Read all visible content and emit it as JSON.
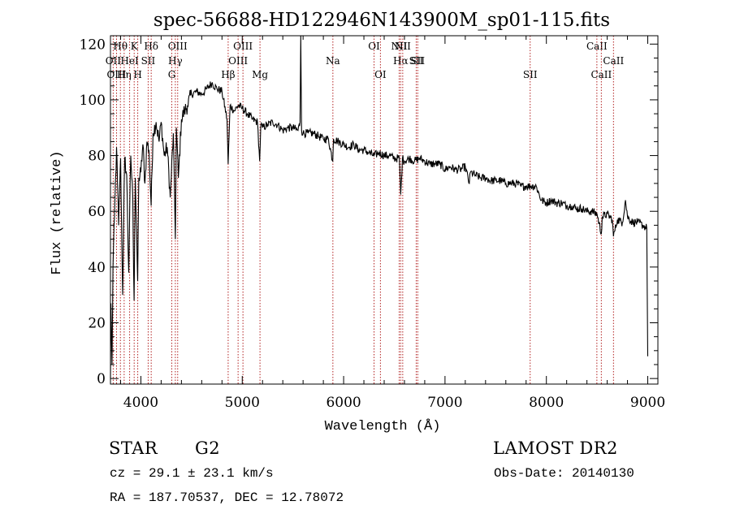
{
  "chart_data": {
    "type": "line",
    "title": "spec-56688-HD122946N143900M_sp01-115.fits",
    "xlabel": "Wavelength (Å)",
    "ylabel": "Flux (relative)",
    "xlim": [
      3700,
      9100
    ],
    "ylim": [
      -2,
      123
    ],
    "xticks": [
      4000,
      5000,
      6000,
      7000,
      8000,
      9000
    ],
    "yticks": [
      0,
      20,
      40,
      60,
      80,
      100,
      120
    ],
    "grid": false,
    "series": [
      {
        "name": "flux",
        "x": [
          3700,
          3705,
          3715,
          3725,
          3740,
          3760,
          3780,
          3800,
          3820,
          3840,
          3860,
          3880,
          3900,
          3920,
          3933,
          3945,
          3968,
          3980,
          4000,
          4020,
          4040,
          4060,
          4080,
          4101,
          4120,
          4150,
          4180,
          4200,
          4230,
          4260,
          4290,
          4320,
          4340,
          4350,
          4370,
          4400,
          4430,
          4460,
          4500,
          4550,
          4600,
          4650,
          4700,
          4750,
          4800,
          4850,
          4861,
          4880,
          4920,
          4960,
          5000,
          5050,
          5100,
          5150,
          5172,
          5183,
          5200,
          5250,
          5300,
          5350,
          5400,
          5450,
          5500,
          5550,
          5570,
          5577,
          5585,
          5600,
          5650,
          5700,
          5750,
          5800,
          5850,
          5893,
          5900,
          5950,
          6000,
          6050,
          6100,
          6150,
          6200,
          6250,
          6300,
          6350,
          6400,
          6450,
          6500,
          6550,
          6563,
          6580,
          6600,
          6650,
          6700,
          6750,
          6800,
          6850,
          6900,
          6950,
          7000,
          7050,
          7100,
          7150,
          7200,
          7240,
          7250,
          7300,
          7350,
          7400,
          7450,
          7500,
          7550,
          7600,
          7650,
          7700,
          7750,
          7800,
          7850,
          7900,
          7950,
          8000,
          8050,
          8100,
          8150,
          8200,
          8250,
          8300,
          8350,
          8400,
          8450,
          8500,
          8542,
          8550,
          8600,
          8650,
          8662,
          8700,
          8750,
          8780,
          8800,
          8850,
          8900,
          8950,
          8990,
          9000
        ],
        "y": [
          0,
          27,
          5,
          40,
          58,
          83,
          55,
          79,
          30,
          79,
          73,
          38,
          80,
          65,
          28,
          72,
          35,
          72,
          74,
          84,
          70,
          85,
          82,
          62,
          88,
          92,
          85,
          92,
          80,
          83,
          65,
          88,
          50,
          90,
          72,
          93,
          96,
          98,
          102,
          103,
          102,
          104,
          106,
          104,
          103,
          93,
          77,
          98,
          96,
          98,
          97,
          95,
          93,
          92,
          78,
          91,
          90,
          91,
          92,
          91,
          89,
          90,
          90,
          89,
          92,
          123,
          89,
          88,
          88,
          88,
          87,
          86,
          86,
          78,
          86,
          85,
          84,
          83,
          84,
          82,
          82,
          81,
          80,
          81,
          80,
          80,
          79,
          79,
          66,
          79,
          78,
          79,
          78,
          79,
          78,
          77,
          77,
          77,
          75,
          76,
          75,
          75,
          76,
          70,
          74,
          73,
          72,
          72,
          71,
          71,
          71,
          70,
          70,
          70,
          69,
          69,
          69,
          69,
          64,
          63,
          64,
          63,
          63,
          62,
          62,
          61,
          61,
          60,
          60,
          59,
          52,
          58,
          59,
          57,
          51,
          57,
          56,
          64,
          58,
          56,
          56,
          55,
          54,
          8
        ]
      }
    ],
    "annotation_lines": [
      {
        "label": "OII",
        "x": 3727,
        "row": 2
      },
      {
        "label": "OIII",
        "x": 3760,
        "row": 3
      },
      {
        "label": "Hθ",
        "x": 3798,
        "row": 1
      },
      {
        "label": "Hη",
        "x": 3835,
        "row": 3
      },
      {
        "label": "HeI",
        "x": 3889,
        "row": 2
      },
      {
        "label": "K",
        "x": 3934,
        "row": 1
      },
      {
        "label": "H",
        "x": 3969,
        "row": 3
      },
      {
        "label": "SII",
        "x": 4072,
        "row": 2
      },
      {
        "label": "Hδ",
        "x": 4102,
        "row": 1
      },
      {
        "label": "G",
        "x": 4305,
        "row": 3
      },
      {
        "label": "Hγ",
        "x": 4340,
        "row": 2
      },
      {
        "label": "OIII",
        "x": 4363,
        "row": 1
      },
      {
        "label": "Hβ",
        "x": 4861,
        "row": 3
      },
      {
        "label": "OIII",
        "x": 4959,
        "row": 2
      },
      {
        "label": "OIII",
        "x": 5007,
        "row": 1
      },
      {
        "label": "Mg",
        "x": 5175,
        "row": 3
      },
      {
        "label": "Na",
        "x": 5894,
        "row": 2
      },
      {
        "label": "OI",
        "x": 6300,
        "row": 1
      },
      {
        "label": "OI",
        "x": 6363,
        "row": 3
      },
      {
        "label": "NII",
        "x": 6548,
        "row": 1
      },
      {
        "label": "Hα",
        "x": 6563,
        "row": 2
      },
      {
        "label": "NII",
        "x": 6583,
        "row": 1
      },
      {
        "label": "SII",
        "x": 6716,
        "row": 2
      },
      {
        "label": "SII",
        "x": 6731,
        "row": 2
      },
      {
        "label": "SII",
        "x": 7840,
        "row": 3
      },
      {
        "label": "CaII",
        "x": 8498,
        "row": 1
      },
      {
        "label": "CaII",
        "x": 8542,
        "row": 3
      },
      {
        "label": "CaII",
        "x": 8662,
        "row": 2
      }
    ]
  },
  "footer": {
    "object_class": "STAR",
    "subclass": "G2",
    "redshift": "cz =  29.1 ± 23.1 km/s",
    "coordinates": "RA = 187.70537, DEC =  12.78072",
    "survey": "LAMOST DR2",
    "obs_date": "Obs-Date: 20140130"
  },
  "colors": {
    "line": "#000000",
    "annotation": "#b22222",
    "background": "#ffffff"
  }
}
